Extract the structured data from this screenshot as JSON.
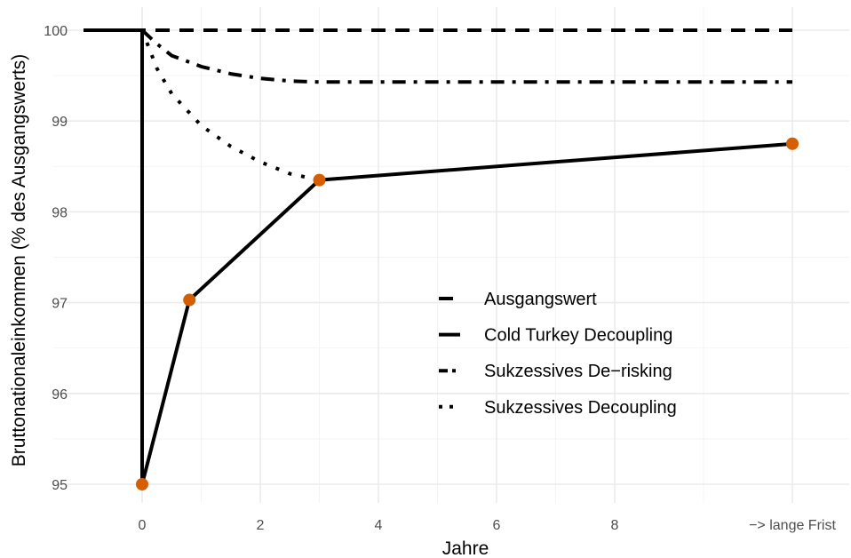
{
  "chart_data": {
    "type": "line",
    "xlabel": "Jahre",
    "ylabel": "Bruttonationaleinkommen (% des Ausgangswerts)",
    "xlim": [
      -1,
      12
    ],
    "ylim": [
      94.8,
      100.3
    ],
    "x_ticks": [
      {
        "value": 0,
        "label": "0"
      },
      {
        "value": 2,
        "label": "2"
      },
      {
        "value": 4,
        "label": "4"
      },
      {
        "value": 6,
        "label": "6"
      },
      {
        "value": 8,
        "label": "8"
      },
      {
        "value": 11,
        "label": "−> lange Frist"
      }
    ],
    "y_ticks": [
      {
        "value": 95,
        "label": "95"
      },
      {
        "value": 96,
        "label": "96"
      },
      {
        "value": 97,
        "label": "97"
      },
      {
        "value": 98,
        "label": "98"
      },
      {
        "value": 99,
        "label": "99"
      },
      {
        "value": 100,
        "label": "100"
      }
    ],
    "grid": true,
    "legend_position": "inside-right",
    "series": [
      {
        "name": "Ausgangswert",
        "linestyle": "dashed",
        "x": [
          -1,
          11
        ],
        "y": [
          100,
          100
        ]
      },
      {
        "name": "Cold Turkey Decoupling",
        "linestyle": "solid",
        "x": [
          -1,
          0,
          0,
          0.8,
          3,
          11
        ],
        "y": [
          100,
          100,
          95,
          97.03,
          98.35,
          98.75
        ],
        "markers": {
          "x": [
            0,
            0.8,
            3,
            11
          ],
          "y": [
            95,
            97.03,
            98.35,
            98.75
          ],
          "color": "#d55e00"
        }
      },
      {
        "name": "Sukzessives De−risking",
        "linestyle": "dashdot",
        "x": [
          0,
          0.25,
          0.5,
          1,
          1.5,
          2,
          2.5,
          3,
          11
        ],
        "y": [
          100,
          99.85,
          99.72,
          99.6,
          99.52,
          99.47,
          99.44,
          99.43,
          99.43
        ]
      },
      {
        "name": "Sukzessives Decoupling",
        "linestyle": "dotted",
        "x": [
          0,
          0.25,
          0.5,
          1,
          1.5,
          2,
          2.5,
          3
        ],
        "y": [
          100,
          99.58,
          99.3,
          98.95,
          98.72,
          98.55,
          98.42,
          98.35
        ]
      }
    ]
  }
}
